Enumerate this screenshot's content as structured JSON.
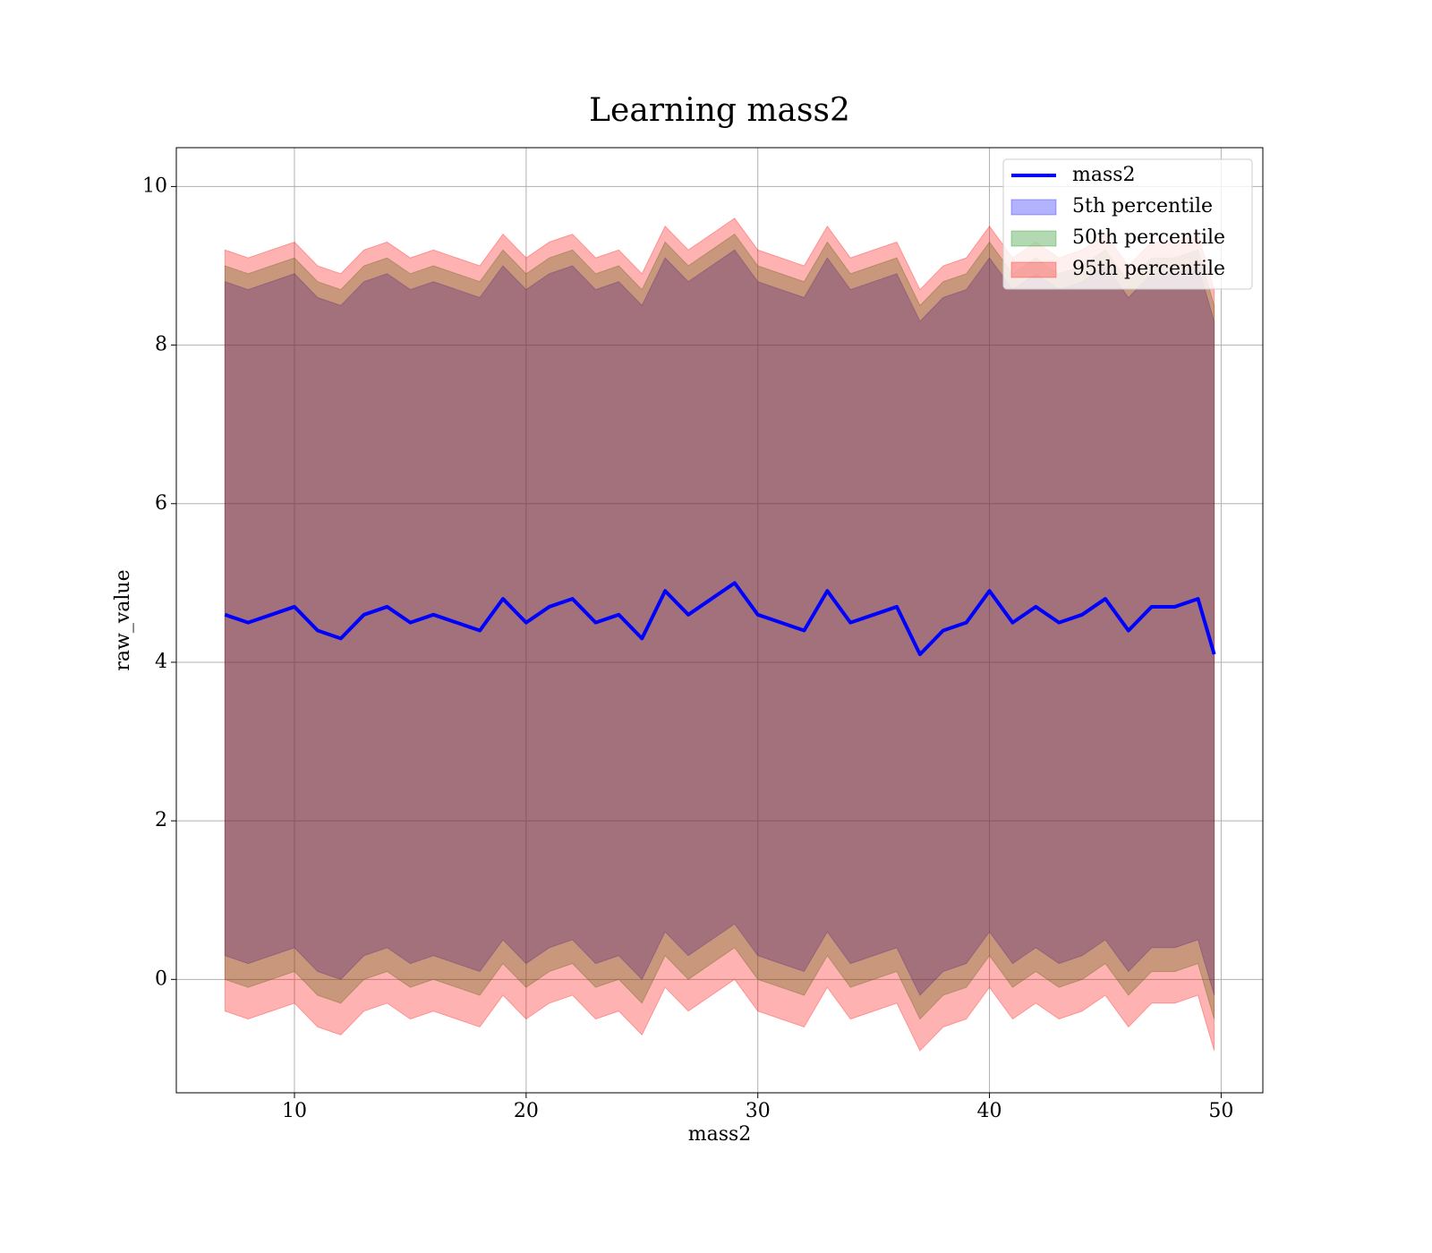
{
  "chart_data": {
    "type": "line-band",
    "title": "Learning mass2",
    "x_label": "mass2",
    "y_label": "raw_value",
    "xlim": [
      4.9,
      51.8
    ],
    "ylim": [
      -1.43,
      10.49
    ],
    "xticks": [
      10,
      20,
      30,
      40,
      50
    ],
    "yticks": [
      0,
      2,
      4,
      6,
      8,
      10
    ],
    "grid": true,
    "legend": "upper right",
    "x": [
      7,
      8,
      9,
      10,
      11,
      12,
      13,
      14,
      15,
      16,
      17,
      18,
      19,
      20,
      21,
      22,
      23,
      24,
      25,
      26,
      27,
      28,
      29,
      30,
      31,
      32,
      33,
      34,
      35,
      36,
      37,
      38,
      39,
      40,
      41,
      42,
      43,
      44,
      45,
      46,
      47,
      48,
      49,
      49.7
    ],
    "line": {
      "name": "mass2",
      "color": "#0000ff",
      "values": [
        4.6,
        4.5,
        4.6,
        4.7,
        4.4,
        4.3,
        4.6,
        4.7,
        4.5,
        4.6,
        4.5,
        4.4,
        4.8,
        4.5,
        4.7,
        4.8,
        4.5,
        4.6,
        4.3,
        4.9,
        4.6,
        4.8,
        5.0,
        4.6,
        4.5,
        4.4,
        4.9,
        4.5,
        4.6,
        4.7,
        4.1,
        4.4,
        4.5,
        4.9,
        4.5,
        4.7,
        4.5,
        4.6,
        4.8,
        4.4,
        4.7,
        4.7,
        4.8,
        4.1
      ]
    },
    "bands": [
      {
        "name": "5th percentile",
        "color": "#0000ff",
        "upper": [
          8.8,
          8.7,
          8.8,
          8.9,
          8.6,
          8.5,
          8.8,
          8.9,
          8.7,
          8.8,
          8.7,
          8.6,
          9.0,
          8.7,
          8.9,
          9.0,
          8.7,
          8.8,
          8.5,
          9.1,
          8.8,
          9.0,
          9.2,
          8.8,
          8.7,
          8.6,
          9.1,
          8.7,
          8.8,
          8.9,
          8.3,
          8.6,
          8.7,
          9.1,
          8.7,
          8.9,
          8.7,
          8.8,
          9.0,
          8.6,
          8.9,
          8.9,
          9.0,
          8.3
        ],
        "lower": [
          0.3,
          0.2,
          0.3,
          0.4,
          0.1,
          0.0,
          0.3,
          0.4,
          0.2,
          0.3,
          0.2,
          0.1,
          0.5,
          0.2,
          0.4,
          0.5,
          0.2,
          0.3,
          0.0,
          0.6,
          0.3,
          0.5,
          0.7,
          0.3,
          0.2,
          0.1,
          0.6,
          0.2,
          0.3,
          0.4,
          -0.2,
          0.1,
          0.2,
          0.6,
          0.2,
          0.4,
          0.2,
          0.3,
          0.5,
          0.1,
          0.4,
          0.4,
          0.5,
          -0.2
        ]
      },
      {
        "name": "50th percentile",
        "color": "#008000",
        "upper": [
          9.0,
          8.9,
          9.0,
          9.1,
          8.8,
          8.7,
          9.0,
          9.1,
          8.9,
          9.0,
          8.9,
          8.8,
          9.2,
          8.9,
          9.1,
          9.2,
          8.9,
          9.0,
          8.7,
          9.3,
          9.0,
          9.2,
          9.4,
          9.0,
          8.9,
          8.8,
          9.3,
          8.9,
          9.0,
          9.1,
          8.5,
          8.8,
          8.9,
          9.3,
          8.9,
          9.1,
          8.9,
          9.0,
          9.2,
          8.8,
          9.1,
          9.1,
          9.2,
          8.5
        ],
        "lower": [
          0.0,
          -0.1,
          0.0,
          0.1,
          -0.2,
          -0.3,
          0.0,
          0.1,
          -0.1,
          0.0,
          -0.1,
          -0.2,
          0.2,
          -0.1,
          0.1,
          0.2,
          -0.1,
          0.0,
          -0.3,
          0.3,
          0.0,
          0.2,
          0.4,
          0.0,
          -0.1,
          -0.2,
          0.3,
          -0.1,
          0.0,
          0.1,
          -0.5,
          -0.2,
          -0.1,
          0.3,
          -0.1,
          0.1,
          -0.1,
          0.0,
          0.2,
          -0.2,
          0.1,
          0.1,
          0.2,
          -0.5
        ]
      },
      {
        "name": "95th percentile",
        "color": "#ff0000",
        "upper": [
          9.2,
          9.1,
          9.2,
          9.3,
          9.0,
          8.9,
          9.2,
          9.3,
          9.1,
          9.2,
          9.1,
          9.0,
          9.4,
          9.1,
          9.3,
          9.4,
          9.1,
          9.2,
          8.9,
          9.5,
          9.2,
          9.4,
          9.6,
          9.2,
          9.1,
          9.0,
          9.5,
          9.1,
          9.2,
          9.3,
          8.7,
          9.0,
          9.1,
          9.5,
          9.1,
          9.3,
          9.1,
          9.2,
          9.4,
          9.0,
          9.3,
          9.3,
          9.4,
          8.7
        ],
        "lower": [
          -0.4,
          -0.5,
          -0.4,
          -0.3,
          -0.6,
          -0.7,
          -0.4,
          -0.3,
          -0.5,
          -0.4,
          -0.5,
          -0.6,
          -0.2,
          -0.5,
          -0.3,
          -0.2,
          -0.5,
          -0.4,
          -0.7,
          -0.1,
          -0.4,
          -0.2,
          0.0,
          -0.4,
          -0.5,
          -0.6,
          -0.1,
          -0.5,
          -0.4,
          -0.3,
          -0.9,
          -0.6,
          -0.5,
          -0.1,
          -0.5,
          -0.3,
          -0.5,
          -0.4,
          -0.2,
          -0.6,
          -0.3,
          -0.3,
          -0.2,
          -0.9
        ]
      }
    ]
  }
}
